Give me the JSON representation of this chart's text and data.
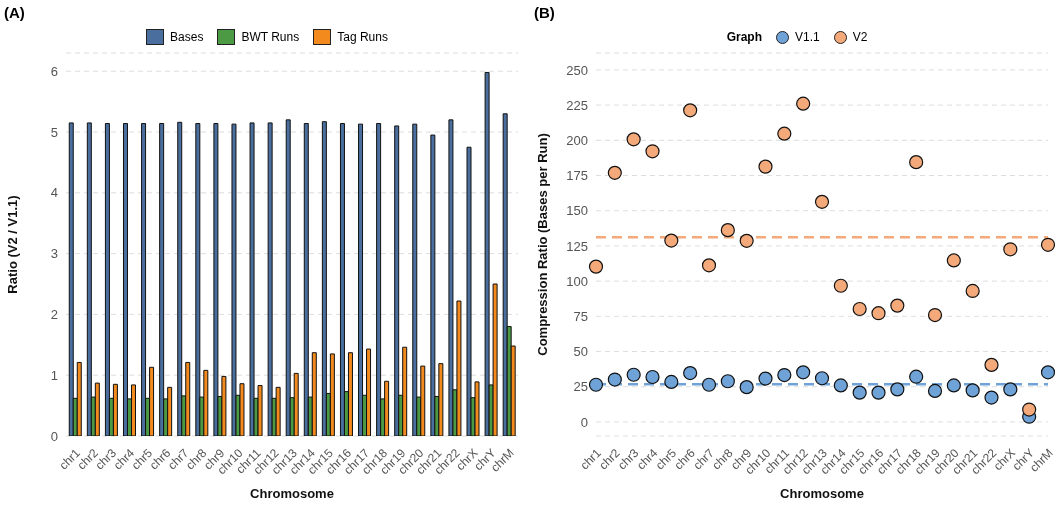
{
  "chart_data": [
    {
      "type": "bar",
      "title": "(A)",
      "xlabel": "Chromosome",
      "ylabel": "Ratio (V2 / V1.1)",
      "categories": [
        "chr1",
        "chr2",
        "chr3",
        "chr4",
        "chr5",
        "chr6",
        "chr7",
        "chr8",
        "chr9",
        "chr10",
        "chr11",
        "chr12",
        "chr13",
        "chr14",
        "chr15",
        "chr16",
        "chr17",
        "chr18",
        "chr19",
        "chr20",
        "chr21",
        "chr22",
        "chrX",
        "chrY",
        "chrM"
      ],
      "series": [
        {
          "name": "Bases",
          "color": "#4a6f9e",
          "values": [
            5.15,
            5.15,
            5.14,
            5.14,
            5.14,
            5.14,
            5.16,
            5.14,
            5.14,
            5.13,
            5.15,
            5.15,
            5.2,
            5.14,
            5.17,
            5.14,
            5.13,
            5.14,
            5.1,
            5.13,
            4.95,
            5.2,
            4.75,
            5.98,
            5.3
          ]
        },
        {
          "name": "BWT Runs",
          "color": "#4d9a45",
          "values": [
            0.62,
            0.64,
            0.62,
            0.61,
            0.62,
            0.61,
            0.66,
            0.64,
            0.65,
            0.67,
            0.62,
            0.62,
            0.63,
            0.64,
            0.7,
            0.73,
            0.67,
            0.61,
            0.67,
            0.64,
            0.65,
            0.76,
            0.63,
            0.84,
            1.8
          ]
        },
        {
          "name": "Tag Runs",
          "color": "#f28a1e",
          "values": [
            1.21,
            0.87,
            0.85,
            0.84,
            1.13,
            0.8,
            1.21,
            1.08,
            0.98,
            0.86,
            0.83,
            0.8,
            1.03,
            1.37,
            1.35,
            1.37,
            1.43,
            0.9,
            1.46,
            1.15,
            1.19,
            2.22,
            0.89,
            2.5,
            1.48
          ]
        }
      ],
      "ylim": [
        0,
        6.3
      ],
      "yticks": [
        0,
        1,
        2,
        3,
        4,
        5,
        6
      ],
      "grid": "y",
      "legend": "top"
    },
    {
      "type": "scatter",
      "title": "(B)",
      "xlabel": "Chromosome",
      "ylabel": "Compression Ratio (Bases per Run)",
      "legend_title": "Graph",
      "categories": [
        "chr1",
        "chr2",
        "chr3",
        "chr4",
        "chr5",
        "chr6",
        "chr7",
        "chr8",
        "chr9",
        "chr10",
        "chr11",
        "chr12",
        "chr13",
        "chr14",
        "chr15",
        "chr16",
        "chr17",
        "chr18",
        "chr19",
        "chr20",
        "chr21",
        "chr22",
        "chrX",
        "chrY",
        "chrM"
      ],
      "series": [
        {
          "name": "V1.1",
          "color": "#6fa3d8",
          "values": [
            26.4,
            30.1,
            33.5,
            31.9,
            28.4,
            34.7,
            26.4,
            28.9,
            24.7,
            30.8,
            33.3,
            35.2,
            31,
            25.9,
            20.8,
            20.8,
            23.1,
            32.1,
            22,
            25.9,
            22.4,
            17.3,
            23.1,
            3.7,
            35.2
          ]
        },
        {
          "name": "V2",
          "color": "#f4a97a",
          "values": [
            110.3,
            176.9,
            200.7,
            192.2,
            128.8,
            221.3,
            111.2,
            136.2,
            128.6,
            181.3,
            204.7,
            226,
            156.3,
            96.7,
            80.2,
            77.2,
            82.6,
            184.5,
            75.9,
            114.7,
            93,
            40.5,
            122.6,
            8.8,
            125.8
          ]
        }
      ],
      "ref_lines": [
        {
          "axis": "y",
          "value": 131.1,
          "color": "#f4a97a",
          "line_style": "dashed"
        },
        {
          "axis": "y",
          "value": 26.8,
          "color": "#6fa3d8",
          "line_style": "dashed"
        }
      ],
      "ylim": [
        -10,
        262
      ],
      "yticks": [
        0,
        25,
        50,
        75,
        100,
        125,
        150,
        175,
        200,
        225,
        250
      ],
      "grid": "y",
      "legend": "top",
      "marker": "circle"
    }
  ]
}
